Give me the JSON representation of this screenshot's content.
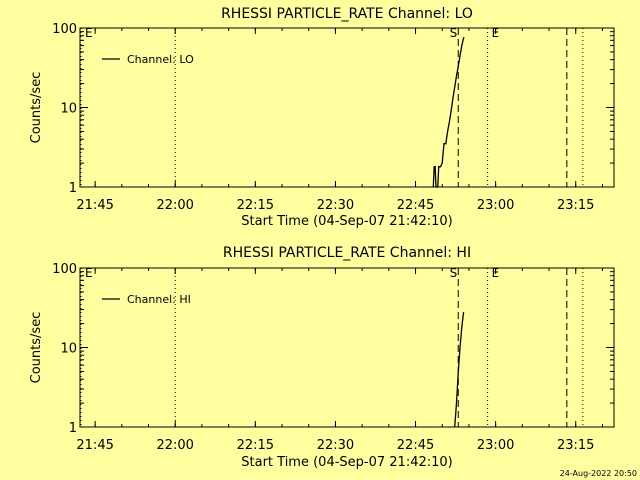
{
  "footer": {
    "timestamp": "24-Aug-2022 20:50"
  },
  "chart_data": [
    {
      "type": "line",
      "title": "RHESSI PARTICLE_RATE Channel: LO",
      "xlabel": "Start Time (04-Sep-07 21:42:10)",
      "ylabel": "Counts/sec",
      "yscale": "log",
      "ylim": [
        1,
        100
      ],
      "xlim": [
        "21:42:10",
        "23:22:10"
      ],
      "xticks": [
        "21:45",
        "22:00",
        "22:15",
        "22:30",
        "22:45",
        "23:00",
        "23:15"
      ],
      "yticks": [
        "1",
        "10",
        "100"
      ],
      "legend": {
        "placement": "top-left",
        "entries": [
          "Channel: LO"
        ]
      },
      "series": [
        {
          "name": "Channel: LO",
          "x": [
            "22:48:20",
            "22:48:30",
            "22:48:40",
            "22:48:50",
            "22:49:10",
            "22:49:20",
            "22:49:40",
            "22:50:00",
            "22:50:20",
            "22:50:40",
            "22:51:00",
            "22:51:20",
            "22:51:40",
            "22:52:00",
            "22:52:20",
            "22:52:40",
            "22:53:00",
            "22:53:20",
            "22:53:40",
            "22:54:00",
            "22:54:10"
          ],
          "y": [
            1.0,
            1.8,
            1.8,
            1.0,
            1.0,
            1.8,
            1.8,
            2.0,
            3.5,
            3.5,
            5.0,
            6.5,
            9.0,
            13,
            18,
            25,
            33,
            45,
            60,
            75,
            75
          ]
        }
      ],
      "annotations": [
        {
          "label": "E",
          "time": "21:42:10",
          "style": "dotted"
        },
        {
          "label": "",
          "time": "22:00:00",
          "style": "dotted"
        },
        {
          "label": "S",
          "time": "22:53:00",
          "style": "dashed"
        },
        {
          "label": "E",
          "time": "22:58:30",
          "style": "dotted"
        },
        {
          "label": "",
          "time": "23:13:20",
          "style": "dashed"
        },
        {
          "label": "",
          "time": "23:16:20",
          "style": "dotted"
        }
      ]
    },
    {
      "type": "line",
      "title": "RHESSI PARTICLE_RATE Channel: HI",
      "xlabel": "Start Time (04-Sep-07 21:42:10)",
      "ylabel": "Counts/sec",
      "yscale": "log",
      "ylim": [
        1,
        100
      ],
      "xlim": [
        "21:42:10",
        "23:22:10"
      ],
      "xticks": [
        "21:45",
        "22:00",
        "22:15",
        "22:30",
        "22:45",
        "23:00",
        "23:15"
      ],
      "yticks": [
        "1",
        "10",
        "100"
      ],
      "legend": {
        "placement": "top-left",
        "entries": [
          "Channel: HI"
        ]
      },
      "series": [
        {
          "name": "Channel: HI",
          "x": [
            "22:52:20",
            "22:52:40",
            "22:53:00",
            "22:53:20",
            "22:53:40",
            "22:54:00"
          ],
          "y": [
            1.0,
            2.0,
            5.0,
            10,
            18,
            28
          ]
        }
      ],
      "annotations": [
        {
          "label": "E",
          "time": "21:42:10",
          "style": "dotted"
        },
        {
          "label": "",
          "time": "22:00:00",
          "style": "dotted"
        },
        {
          "label": "S",
          "time": "22:53:00",
          "style": "dashed"
        },
        {
          "label": "E",
          "time": "22:58:30",
          "style": "dotted"
        },
        {
          "label": "",
          "time": "23:13:20",
          "style": "dashed"
        },
        {
          "label": "",
          "time": "23:16:20",
          "style": "dotted"
        }
      ]
    }
  ]
}
